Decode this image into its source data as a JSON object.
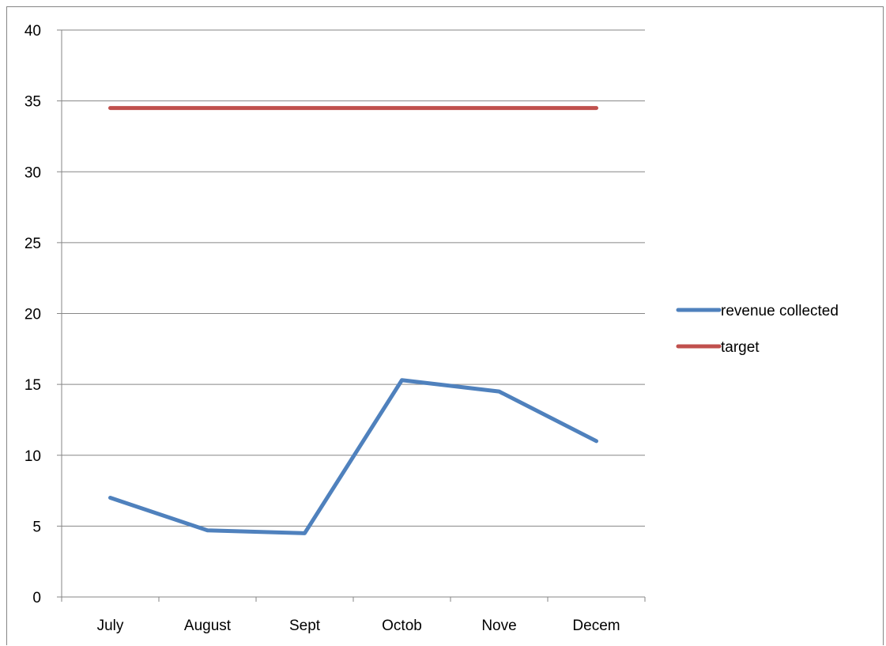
{
  "chart_data": {
    "type": "line",
    "categories": [
      "July",
      "August",
      "Sept",
      "Octob",
      "Nove",
      "Decem"
    ],
    "series": [
      {
        "name": "revenue collected",
        "values": [
          7.0,
          4.7,
          4.5,
          15.3,
          14.5,
          11.0
        ],
        "color": "#4f81bd"
      },
      {
        "name": "target",
        "values": [
          34.5,
          34.5,
          34.5,
          34.5,
          34.5,
          34.5
        ],
        "color": "#c0504d"
      }
    ],
    "y_ticks": [
      "0",
      "5",
      "10",
      "15",
      "20",
      "25",
      "30",
      "35",
      "40"
    ],
    "ylim": [
      0,
      40
    ],
    "grid": true,
    "legend_position": "right"
  }
}
